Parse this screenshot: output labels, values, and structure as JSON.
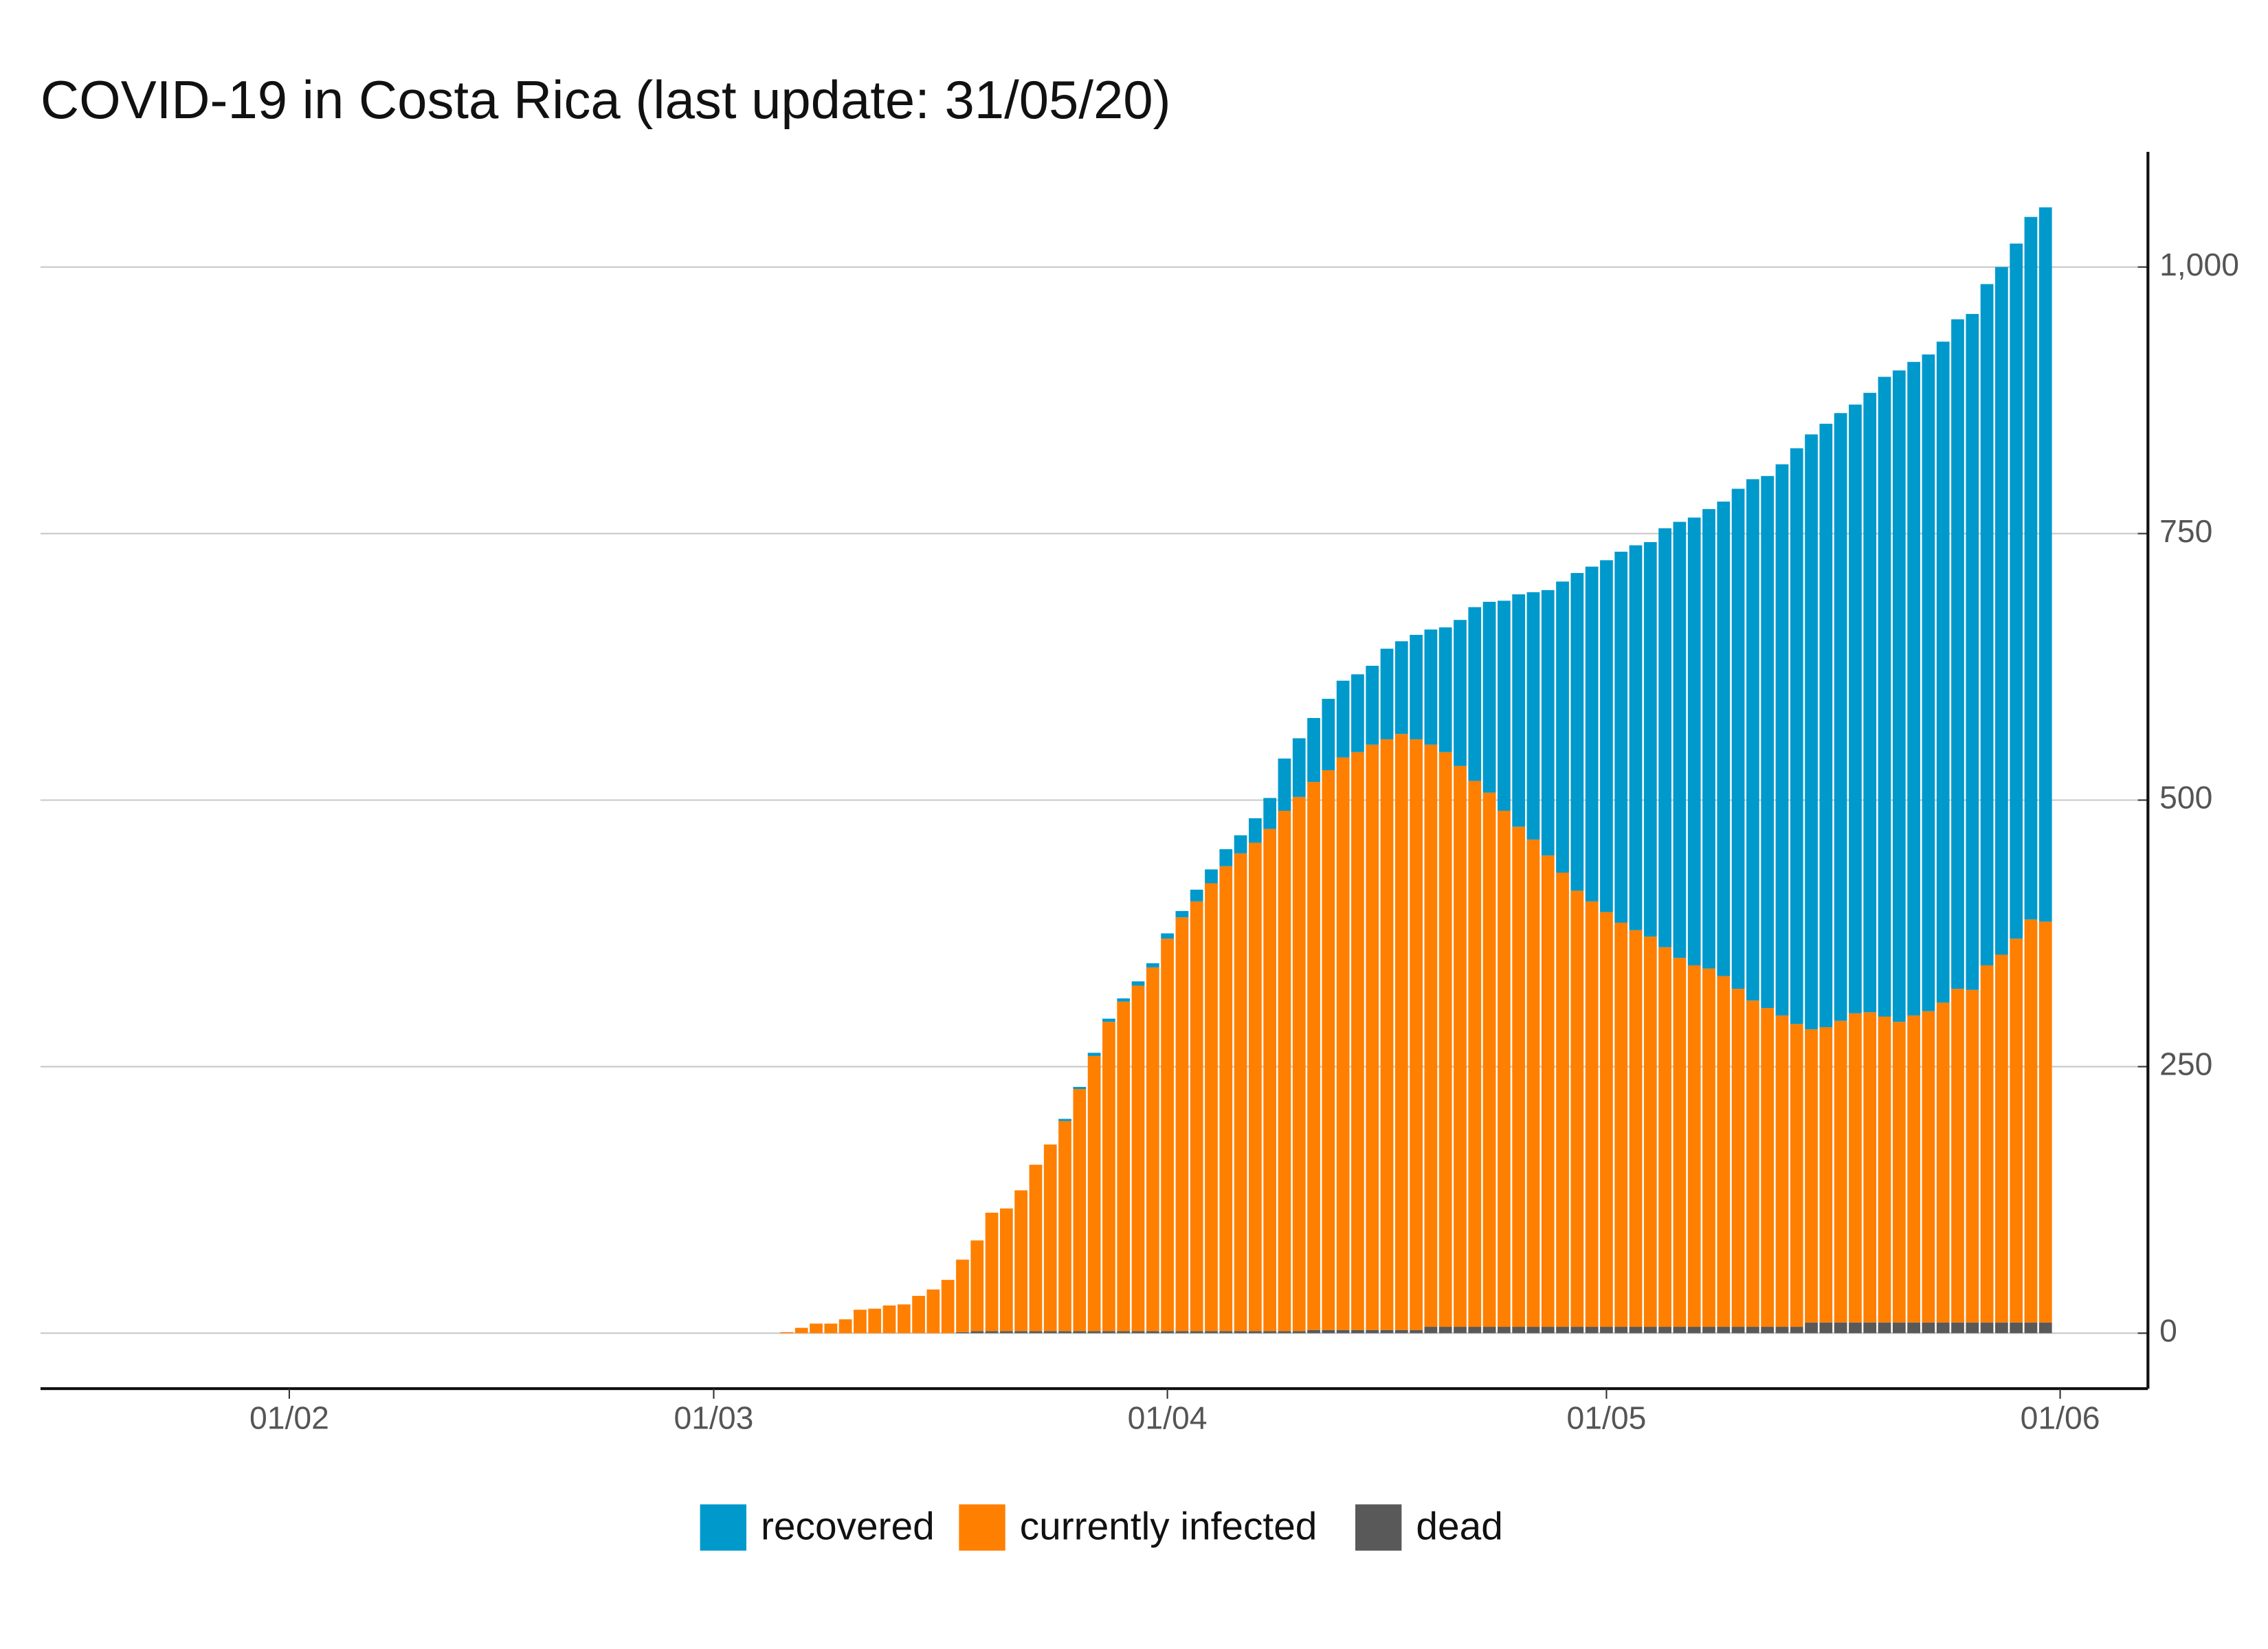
{
  "chart_data": {
    "type": "stacked-bar",
    "title": "COVID-19 in Costa Rica (last update: 31/05/20)",
    "x": [
      "06/03",
      "07/03",
      "08/03",
      "09/03",
      "10/03",
      "11/03",
      "12/03",
      "13/03",
      "14/03",
      "15/03",
      "16/03",
      "17/03",
      "18/03",
      "19/03",
      "20/03",
      "21/03",
      "22/03",
      "23/03",
      "24/03",
      "25/03",
      "26/03",
      "27/03",
      "28/03",
      "29/03",
      "30/03",
      "31/03",
      "01/04",
      "02/04",
      "03/04",
      "04/04",
      "05/04",
      "06/04",
      "07/04",
      "08/04",
      "09/04",
      "10/04",
      "11/04",
      "12/04",
      "13/04",
      "14/04",
      "15/04",
      "16/04",
      "17/04",
      "18/04",
      "19/04",
      "20/04",
      "21/04",
      "22/04",
      "23/04",
      "24/04",
      "25/04",
      "26/04",
      "27/04",
      "28/04",
      "29/04",
      "30/04",
      "01/05",
      "02/05",
      "03/05",
      "04/05",
      "05/05",
      "06/05",
      "07/05",
      "08/05",
      "09/05",
      "10/05",
      "11/05",
      "12/05",
      "13/05",
      "14/05",
      "15/05",
      "16/05",
      "17/05",
      "18/05",
      "19/05",
      "20/05",
      "21/05",
      "22/05",
      "23/05",
      "24/05",
      "25/05",
      "26/05",
      "27/05",
      "28/05",
      "29/05",
      "30/05",
      "31/05"
    ],
    "series": [
      {
        "name": "recovered",
        "color": "#0099cc",
        "values": [
          0,
          0,
          0,
          0,
          0,
          0,
          0,
          0,
          0,
          0,
          0,
          0,
          0,
          0,
          0,
          0,
          0,
          0,
          0,
          2,
          2,
          3,
          3,
          3,
          4,
          4,
          5,
          6,
          11,
          13,
          16,
          17,
          23,
          29,
          49,
          55,
          60,
          67,
          72,
          73,
          74,
          85,
          87,
          98,
          108,
          117,
          137,
          163,
          179,
          197,
          218,
          232,
          249,
          273,
          298,
          314,
          330,
          348,
          361,
          370,
          393,
          409,
          420,
          431,
          445,
          469,
          489,
          499,
          517,
          540,
          558,
          566,
          570,
          571,
          581,
          600,
          611,
          613,
          616,
          620,
          628,
          634,
          639,
          645,
          652,
          659,
          670
        ]
      },
      {
        "name": "currently infected",
        "color": "#ff7f00",
        "values": [
          1,
          5,
          9,
          9,
          13,
          22,
          23,
          26,
          27,
          35,
          41,
          50,
          68,
          85,
          111,
          115,
          132,
          156,
          175,
          197,
          227,
          258,
          290,
          309,
          324,
          341,
          368,
          388,
          403,
          420,
          436,
          448,
          458,
          471,
          488,
          501,
          514,
          525,
          537,
          542,
          549,
          554,
          559,
          554,
          546,
          539,
          526,
          512,
          501,
          484,
          469,
          457,
          442,
          426,
          409,
          399,
          389,
          379,
          372,
          366,
          356,
          346,
          339,
          336,
          329,
          317,
          306,
          299,
          292,
          284,
          275,
          277,
          283,
          290,
          291,
          287,
          282,
          288,
          292,
          300,
          313,
          312,
          335,
          345,
          360,
          378,
          376
        ]
      },
      {
        "name": "dead",
        "color": "#595959",
        "values": [
          0,
          0,
          0,
          0,
          0,
          0,
          0,
          0,
          0,
          0,
          0,
          0,
          1,
          2,
          2,
          2,
          2,
          2,
          2,
          2,
          2,
          2,
          2,
          2,
          2,
          2,
          2,
          2,
          2,
          2,
          2,
          2,
          2,
          2,
          2,
          2,
          3,
          3,
          3,
          3,
          3,
          3,
          3,
          3,
          6,
          6,
          6,
          6,
          6,
          6,
          6,
          6,
          6,
          6,
          6,
          6,
          6,
          6,
          6,
          6,
          6,
          6,
          6,
          6,
          6,
          6,
          6,
          6,
          6,
          6,
          10,
          10,
          10,
          10,
          10,
          10,
          10,
          10,
          10,
          10,
          10,
          10,
          10,
          10,
          10,
          10,
          10
        ]
      }
    ],
    "xlim": [
      "15/01",
      "07/06"
    ],
    "xticks": [
      "01/02",
      "01/03",
      "01/04",
      "01/05",
      "01/06"
    ],
    "ylim": [
      -52,
      1108
    ],
    "yticks": [
      0,
      250,
      500,
      750,
      {
        "value": 1000,
        "label": "1,000"
      }
    ],
    "grid": true
  }
}
